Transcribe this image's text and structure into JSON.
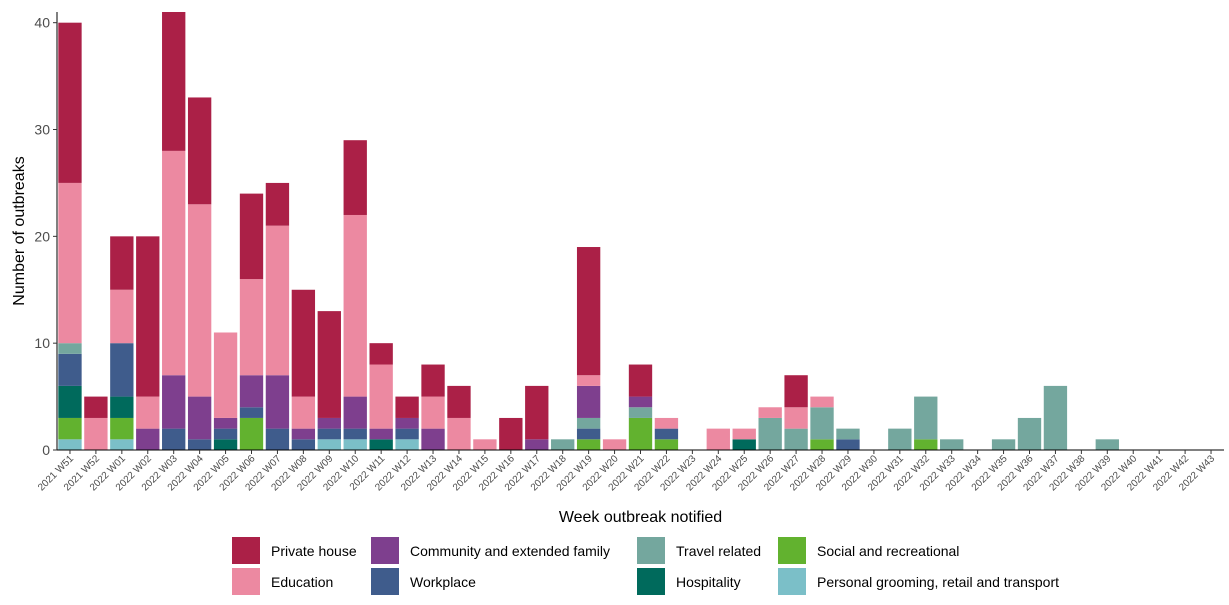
{
  "chart_data": {
    "type": "bar",
    "stacked": true,
    "title": "",
    "xlabel": "Week outbreak notified",
    "ylabel": "Number of outbreaks",
    "ylim": [
      0,
      41
    ],
    "yticks": [
      0,
      10,
      20,
      30,
      40
    ],
    "grid": false,
    "legend_position": "bottom",
    "categories": [
      "2021 W51",
      "2021 W52",
      "2022 W01",
      "2022 W02",
      "2022 W03",
      "2022 W04",
      "2022 W05",
      "2022 W06",
      "2022 W07",
      "2022 W08",
      "2022 W09",
      "2022 W10",
      "2022 W11",
      "2022 W12",
      "2022 W13",
      "2022 W14",
      "2022 W15",
      "2022 W16",
      "2022 W17",
      "2022 W18",
      "2022 W19",
      "2022 W20",
      "2022 W21",
      "2022 W22",
      "2022 W23",
      "2022 W24",
      "2022 W25",
      "2022 W26",
      "2022 W27",
      "2022 W28",
      "2022 W29",
      "2022 W30",
      "2022 W31",
      "2022 W32",
      "2022 W33",
      "2022 W34",
      "2022 W35",
      "2022 W36",
      "2022 W37",
      "2022 W38",
      "2022 W39",
      "2022 W40",
      "2022 W41",
      "2022 W42",
      "2022 W43"
    ],
    "series": [
      {
        "name": "Personal grooming, retail and transport",
        "color": "#7bbfc8",
        "values": [
          1,
          0,
          1,
          0,
          0,
          0,
          0,
          0,
          0,
          0,
          1,
          1,
          0,
          1,
          0,
          0,
          0,
          0,
          0,
          0,
          0,
          0,
          0,
          0,
          0,
          0,
          0,
          0,
          0,
          0,
          0,
          0,
          0,
          0,
          0,
          0,
          0,
          0,
          0,
          0,
          0,
          0,
          0,
          0,
          0
        ]
      },
      {
        "name": "Social and recreational",
        "color": "#62b22f",
        "values": [
          2,
          0,
          2,
          0,
          0,
          0,
          0,
          3,
          0,
          0,
          0,
          0,
          0,
          0,
          0,
          0,
          0,
          0,
          0,
          0,
          1,
          0,
          3,
          1,
          0,
          0,
          0,
          0,
          0,
          1,
          0,
          0,
          0,
          1,
          0,
          0,
          0,
          0,
          0,
          0,
          0,
          0,
          0,
          0,
          0
        ]
      },
      {
        "name": "Hospitality",
        "color": "#006a5c",
        "values": [
          3,
          0,
          2,
          0,
          0,
          0,
          1,
          0,
          0,
          0,
          0,
          0,
          1,
          0,
          0,
          0,
          0,
          0,
          0,
          0,
          0,
          0,
          0,
          0,
          0,
          0,
          1,
          0,
          0,
          0,
          0,
          0,
          0,
          0,
          0,
          0,
          0,
          0,
          0,
          0,
          0,
          0,
          0,
          0,
          0
        ]
      },
      {
        "name": "Workplace",
        "color": "#3f5c8c",
        "values": [
          3,
          0,
          5,
          0,
          2,
          1,
          1,
          1,
          2,
          1,
          1,
          1,
          0,
          1,
          0,
          0,
          0,
          0,
          0,
          0,
          1,
          0,
          0,
          1,
          0,
          0,
          0,
          0,
          0,
          0,
          1,
          0,
          0,
          0,
          0,
          0,
          0,
          0,
          0,
          0,
          0,
          0,
          0,
          0,
          0
        ]
      },
      {
        "name": "Travel related",
        "color": "#74a79e",
        "values": [
          1,
          0,
          0,
          0,
          0,
          0,
          0,
          0,
          0,
          0,
          0,
          0,
          0,
          0,
          0,
          0,
          0,
          0,
          0,
          1,
          1,
          0,
          1,
          0,
          0,
          0,
          0,
          3,
          2,
          3,
          1,
          0,
          2,
          4,
          1,
          0,
          1,
          3,
          6,
          0,
          1,
          0,
          0,
          0,
          0
        ]
      },
      {
        "name": "Community and extended family",
        "color": "#7e3f8e",
        "values": [
          0,
          0,
          0,
          2,
          5,
          4,
          1,
          3,
          5,
          1,
          1,
          3,
          1,
          1,
          2,
          0,
          0,
          0,
          1,
          0,
          3,
          0,
          1,
          0,
          0,
          0,
          0,
          0,
          0,
          0,
          0,
          0,
          0,
          0,
          0,
          0,
          0,
          0,
          0,
          0,
          0,
          0,
          0,
          0,
          0
        ]
      },
      {
        "name": "Education",
        "color": "#ec89a1",
        "values": [
          15,
          3,
          5,
          3,
          21,
          18,
          8,
          9,
          14,
          3,
          0,
          17,
          6,
          0,
          3,
          3,
          1,
          0,
          0,
          0,
          1,
          1,
          0,
          1,
          0,
          2,
          1,
          1,
          2,
          1,
          0,
          0,
          0,
          0,
          0,
          0,
          0,
          0,
          0,
          0,
          0,
          0,
          0,
          0,
          0
        ]
      },
      {
        "name": "Private house",
        "color": "#ab2047",
        "values": [
          15,
          2,
          5,
          15,
          13,
          10,
          0,
          8,
          4,
          10,
          10,
          7,
          2,
          2,
          3,
          3,
          0,
          3,
          5,
          0,
          12,
          0,
          3,
          0,
          0,
          0,
          0,
          0,
          3,
          0,
          0,
          0,
          0,
          0,
          0,
          0,
          0,
          0,
          0,
          0,
          0,
          0,
          0,
          0,
          0
        ]
      }
    ],
    "legend": [
      "Private house",
      "Education",
      "Community and extended family",
      "Workplace",
      "Travel related",
      "Hospitality",
      "Social and recreational",
      "Personal grooming, retail and transport"
    ]
  }
}
